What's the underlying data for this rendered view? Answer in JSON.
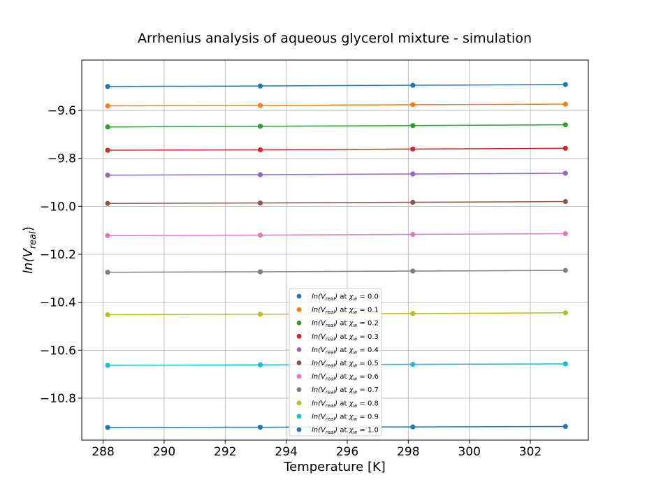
{
  "chart_data": {
    "type": "line",
    "title": "Arrhenius analysis of aqueous glycerol mixture - simulation",
    "xlabel": "Temperature [K]",
    "ylabel": "ln(V_real)",
    "xlim": [
      287.3,
      303.9
    ],
    "ylim": [
      -10.975,
      -9.39
    ],
    "xticks": [
      288,
      290,
      292,
      294,
      296,
      298,
      300,
      302
    ],
    "yticks": [
      -9.6,
      -9.8,
      -10.0,
      -10.2,
      -10.4,
      -10.6,
      -10.8
    ],
    "xtick_labels": [
      "288",
      "290",
      "292",
      "294",
      "296",
      "298",
      "300",
      "302"
    ],
    "ytick_labels": [
      "−9.6",
      "−9.8",
      "−10.0",
      "−10.2",
      "−10.4",
      "−10.6",
      "−10.8"
    ],
    "grid": true,
    "legend_position": "lower-center",
    "x": [
      288.15,
      293.15,
      298.15,
      303.15
    ],
    "series": [
      {
        "name": "ln(V_real) at χw = 0.0",
        "xw": "0.0",
        "color": "#1f77b4",
        "values": [
          -9.5,
          -9.498,
          -9.495,
          -9.492
        ]
      },
      {
        "name": "ln(V_real) at χw = 0.1",
        "xw": "0.1",
        "color": "#ff7f0e",
        "values": [
          -9.581,
          -9.579,
          -9.576,
          -9.574
        ]
      },
      {
        "name": "ln(V_real) at χw = 0.2",
        "xw": "0.2",
        "color": "#2ca02c",
        "values": [
          -9.669,
          -9.666,
          -9.663,
          -9.66
        ]
      },
      {
        "name": "ln(V_real) at χw = 0.3",
        "xw": "0.3",
        "color": "#d62728",
        "values": [
          -9.766,
          -9.764,
          -9.761,
          -9.758
        ]
      },
      {
        "name": "ln(V_real) at χw = 0.4",
        "xw": "0.4",
        "color": "#9467bd",
        "values": [
          -9.87,
          -9.868,
          -9.865,
          -9.862
        ]
      },
      {
        "name": "ln(V_real) at χw = 0.5",
        "xw": "0.5",
        "color": "#8c564b",
        "values": [
          -9.988,
          -9.986,
          -9.983,
          -9.98
        ]
      },
      {
        "name": "ln(V_real) at χw = 0.6",
        "xw": "0.6",
        "color": "#e377c2",
        "values": [
          -10.122,
          -10.12,
          -10.117,
          -10.114
        ]
      },
      {
        "name": "ln(V_real) at χw = 0.7",
        "xw": "0.7",
        "color": "#7f7f7f",
        "values": [
          -10.275,
          -10.273,
          -10.27,
          -10.267
        ]
      },
      {
        "name": "ln(V_real) at χw = 0.8",
        "xw": "0.8",
        "color": "#bcbd22",
        "values": [
          -10.452,
          -10.45,
          -10.447,
          -10.444
        ]
      },
      {
        "name": "ln(V_real) at χw = 0.9",
        "xw": "0.9",
        "color": "#17becf",
        "values": [
          -10.663,
          -10.661,
          -10.659,
          -10.657
        ]
      },
      {
        "name": "ln(V_real) at χw = 1.0",
        "xw": "1.0",
        "color": "#1f77b4",
        "values": [
          -10.922,
          -10.921,
          -10.92,
          -10.918
        ]
      }
    ]
  }
}
